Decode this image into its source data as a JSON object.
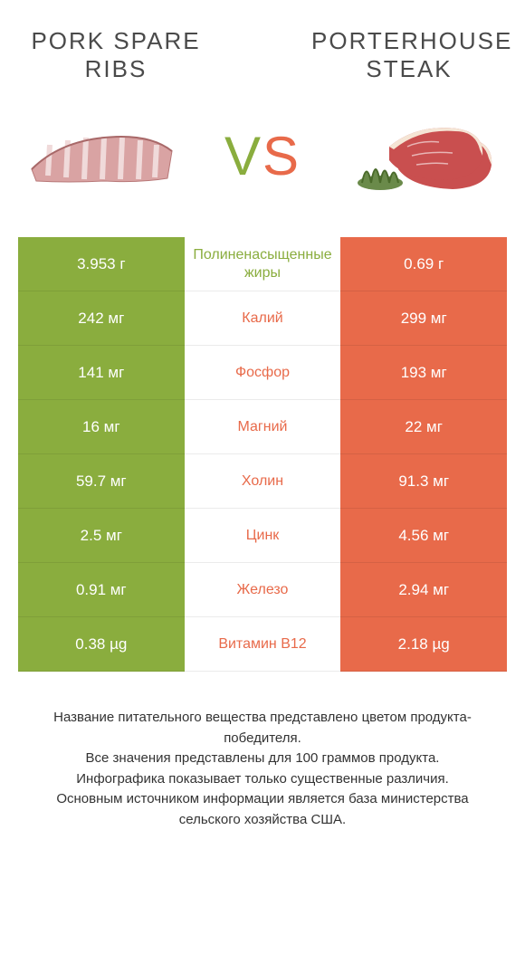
{
  "colors": {
    "left": "#8aad3e",
    "right": "#e86a4a",
    "vs_left": "#8aad3e",
    "vs_right": "#e86a4a"
  },
  "titles": {
    "left_line1": "PORK SPARE",
    "left_line2": "RIBS",
    "right_line1": "PORTERHOUSE",
    "right_line2": "STEAK"
  },
  "vs_label": "VS",
  "rows": [
    {
      "left": "3.953 г",
      "label": "Полиненасыщенные жиры",
      "right": "0.69 г",
      "winner": "left"
    },
    {
      "left": "242 мг",
      "label": "Калий",
      "right": "299 мг",
      "winner": "right"
    },
    {
      "left": "141 мг",
      "label": "Фосфор",
      "right": "193 мг",
      "winner": "right"
    },
    {
      "left": "16 мг",
      "label": "Магний",
      "right": "22 мг",
      "winner": "right"
    },
    {
      "left": "59.7 мг",
      "label": "Холин",
      "right": "91.3 мг",
      "winner": "right"
    },
    {
      "left": "2.5 мг",
      "label": "Цинк",
      "right": "4.56 мг",
      "winner": "right"
    },
    {
      "left": "0.91 мг",
      "label": "Железо",
      "right": "2.94 мг",
      "winner": "right"
    },
    {
      "left": "0.38 µg",
      "label": "Витамин B12",
      "right": "2.18 µg",
      "winner": "right"
    }
  ],
  "footer": {
    "line1": "Название питательного вещества представлено цветом продукта-победителя.",
    "line2": "Все значения представлены для 100 граммов продукта.",
    "line3": "Инфографика показывает только существенные различия.",
    "line4": "Основным источником информации является база министерства сельского хозяйства США."
  }
}
